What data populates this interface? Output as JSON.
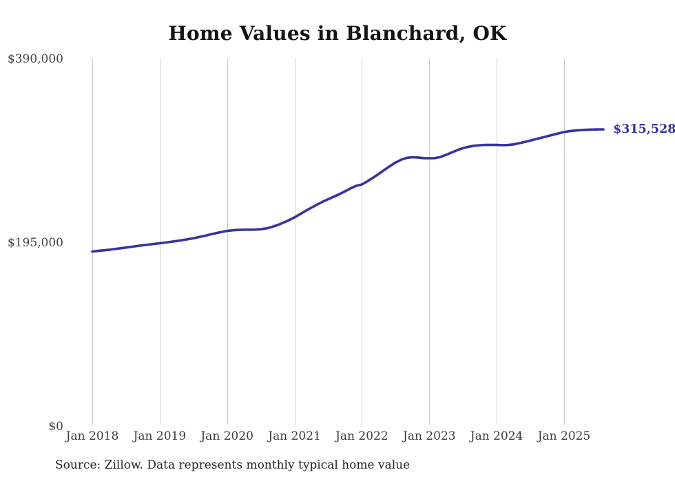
{
  "title": "Home Values in Blanchard, OK",
  "source_note": "Source: Zillow. Data represents monthly typical home value",
  "annotation": {
    "end_value_label": "$315,528"
  },
  "colors": {
    "line": "#38339f",
    "grid": "#cccccc",
    "axis_text": "#444444",
    "title_text": "#141414",
    "source_text": "#232323"
  },
  "y_axis": {
    "ticks": [
      {
        "label": "$390,000",
        "value": 390000
      },
      {
        "label": "$195,000",
        "value": 195000
      },
      {
        "label": "$0",
        "value": 0
      }
    ]
  },
  "x_axis": {
    "tick_labels": [
      "Jan 2018",
      "Jan 2019",
      "Jan 2020",
      "Jan 2021",
      "Jan 2022",
      "Jan 2023",
      "Jan 2024",
      "Jan 2025"
    ]
  },
  "chart_data": {
    "type": "line",
    "title": "Home Values in Blanchard, OK",
    "series_name": "Monthly typical home value",
    "xlabel": "",
    "ylabel": "",
    "ylim": [
      0,
      390000
    ],
    "yticks": [
      0,
      195000,
      390000
    ],
    "ytick_labels": [
      "$0",
      "$195,000",
      "$390,000"
    ],
    "xtick_labels": [
      "Jan 2018",
      "Jan 2019",
      "Jan 2020",
      "Jan 2021",
      "Jan 2022",
      "Jan 2023",
      "Jan 2024",
      "Jan 2025"
    ],
    "grid": "vertical-only",
    "legend": "none",
    "end_annotation": "$315,528",
    "final_value": 315528,
    "x": [
      "2018-01",
      "2018-02",
      "2018-03",
      "2018-04",
      "2018-05",
      "2018-06",
      "2018-07",
      "2018-08",
      "2018-09",
      "2018-10",
      "2018-11",
      "2018-12",
      "2019-01",
      "2019-02",
      "2019-03",
      "2019-04",
      "2019-05",
      "2019-06",
      "2019-07",
      "2019-08",
      "2019-09",
      "2019-10",
      "2019-11",
      "2019-12",
      "2020-01",
      "2020-02",
      "2020-03",
      "2020-04",
      "2020-05",
      "2020-06",
      "2020-07",
      "2020-08",
      "2020-09",
      "2020-10",
      "2020-11",
      "2020-12",
      "2021-01",
      "2021-02",
      "2021-03",
      "2021-04",
      "2021-05",
      "2021-06",
      "2021-07",
      "2021-08",
      "2021-09",
      "2021-10",
      "2021-11",
      "2021-12",
      "2022-01",
      "2022-02",
      "2022-03",
      "2022-04",
      "2022-05",
      "2022-06",
      "2022-07",
      "2022-08",
      "2022-09",
      "2022-10",
      "2022-11",
      "2022-12",
      "2023-01",
      "2023-02",
      "2023-03",
      "2023-04",
      "2023-05",
      "2023-06",
      "2023-07",
      "2023-08",
      "2023-09",
      "2023-10",
      "2023-11",
      "2023-12",
      "2024-01",
      "2024-02",
      "2024-03",
      "2024-04",
      "2024-05",
      "2024-06",
      "2024-07",
      "2024-08",
      "2024-09",
      "2024-10",
      "2024-11",
      "2024-12",
      "2025-01",
      "2025-02",
      "2025-03",
      "2025-04",
      "2025-05",
      "2025-06",
      "2025-07",
      "2025-08"
    ],
    "values": [
      185900,
      186500,
      187100,
      187800,
      188500,
      189300,
      190100,
      190900,
      191700,
      192500,
      193200,
      193900,
      194600,
      195400,
      196200,
      197000,
      197900,
      198900,
      200000,
      201200,
      202500,
      203900,
      205300,
      206600,
      207800,
      208400,
      208800,
      209000,
      209000,
      209100,
      209500,
      210400,
      212000,
      214000,
      216400,
      219100,
      222100,
      225500,
      229000,
      232400,
      235600,
      238600,
      241400,
      244100,
      246800,
      249800,
      252900,
      255600,
      257100,
      260500,
      264200,
      268200,
      272400,
      276600,
      280400,
      283300,
      285300,
      285900,
      285600,
      285000,
      284800,
      285000,
      286200,
      288500,
      291000,
      293500,
      295600,
      297100,
      298100,
      298700,
      299000,
      299100,
      299000,
      298800,
      298900,
      299600,
      300800,
      302200,
      303700,
      305200,
      306700,
      308200,
      309700,
      311200,
      312700,
      313600,
      314300,
      314800,
      315100,
      315300,
      315450,
      315528
    ]
  }
}
